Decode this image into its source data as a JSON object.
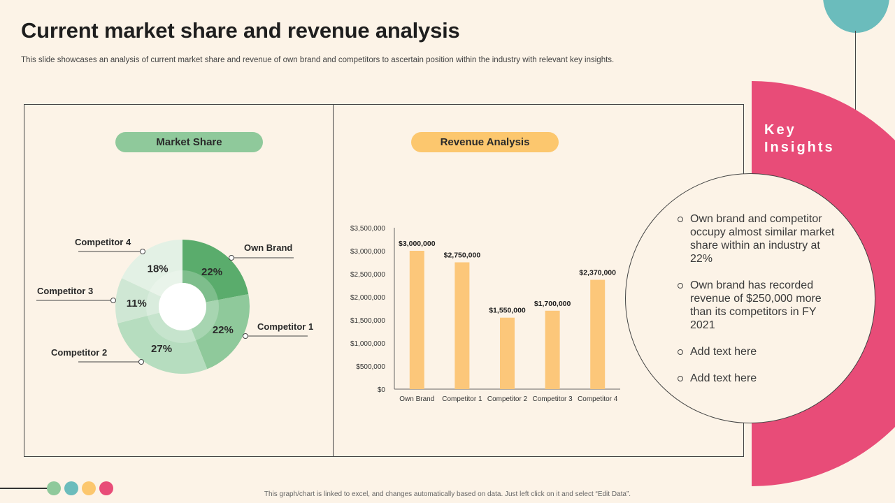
{
  "slide": {
    "title": "Current market share and revenue analysis",
    "subtitle": "This slide showcases an analysis of current market share and revenue of own brand and competitors to ascertain position within the industry with relevant key insights.",
    "footer_note": "This graph/chart is linked to excel, and changes automatically based on data. Just left click on it and select “Edit Data”."
  },
  "market_share": {
    "label": "Market Share"
  },
  "revenue": {
    "label": "Revenue Analysis"
  },
  "key_insights": {
    "title_line1": "Key",
    "title_line2": "Insights",
    "items": [
      "Own brand and competitor occupy almost similar market share within an industry at 22%",
      "Own brand has recorded revenue of $250,000 more than its competitors in FY 2021",
      "Add text here",
      "Add text here"
    ]
  },
  "colors": {
    "background": "#fcf3e7",
    "green": "#8fc99b",
    "yellow": "#fcc76e",
    "pink": "#e84c78",
    "teal": "#6bbcbc",
    "bar": "#fcc77a"
  },
  "chart_data": [
    {
      "type": "pie",
      "title": "Market Share",
      "categories": [
        "Own Brand",
        "Competitor 1",
        "Competitor 2",
        "Competitor 3",
        "Competitor 4"
      ],
      "values": [
        22,
        22,
        27,
        11,
        18
      ],
      "labels": [
        "22%",
        "22%",
        "27%",
        "11%",
        "18%"
      ],
      "colors": [
        "#5aac6c",
        "#8fc99b",
        "#b6ddbf",
        "#cfe7d4",
        "#e3f1e5"
      ]
    },
    {
      "type": "bar",
      "title": "Revenue Analysis",
      "categories": [
        "Own Brand",
        "Competitor 1",
        "Competitor 2",
        "Competitor 3",
        "Competitor 4"
      ],
      "values": [
        3000000,
        2750000,
        1550000,
        1700000,
        2370000
      ],
      "data_labels": [
        "$3,000,000",
        "$2,750,000",
        "$1,550,000",
        "$1,700,000",
        "$2,370,000"
      ],
      "ylim": [
        0,
        3500000
      ],
      "yticks": [
        "$0",
        "$500,000",
        "$1,000,000",
        "$1,500,000",
        "$2,000,000",
        "$2,500,000",
        "$3,000,000",
        "$3,500,000"
      ]
    }
  ]
}
